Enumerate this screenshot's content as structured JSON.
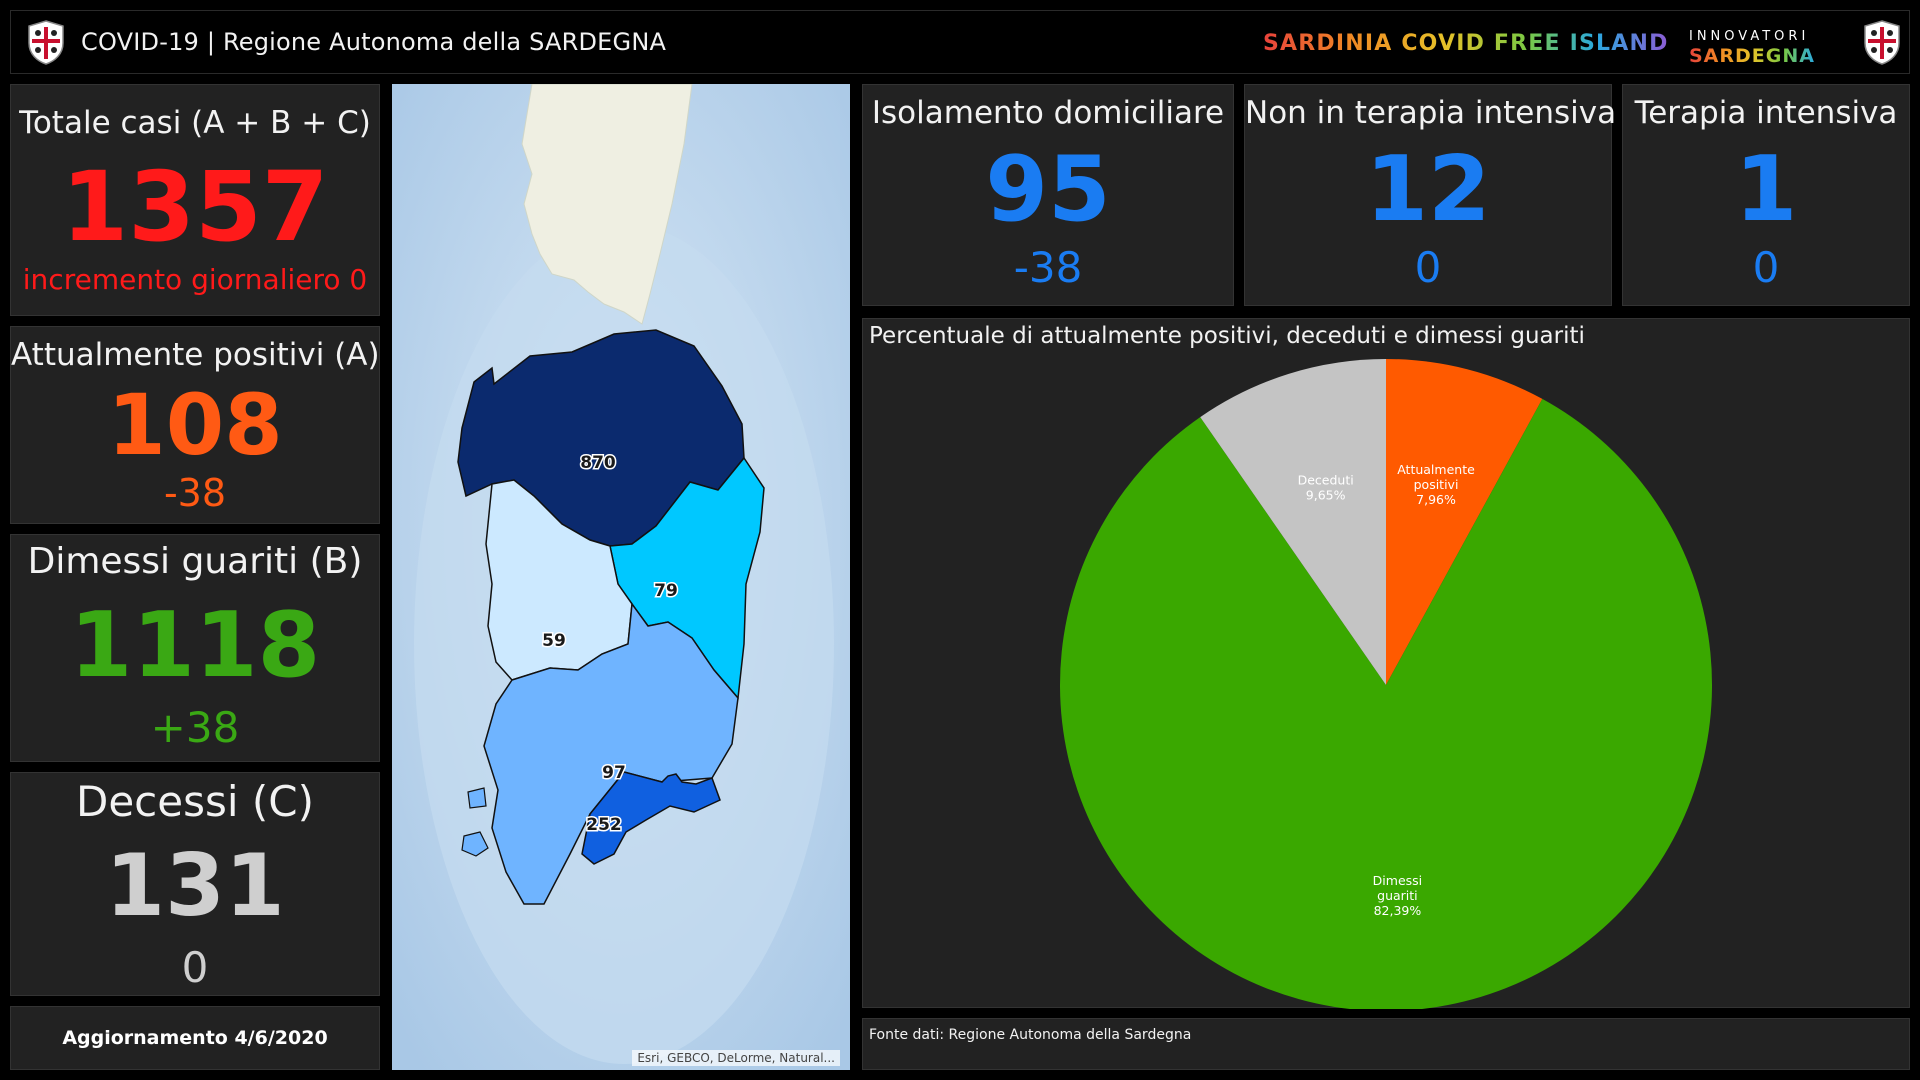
{
  "header": {
    "title": "COVID-19 | Regione Autonoma della SARDEGNA",
    "campaign": "SARDINIA COVID FREE ISLAND",
    "partner_top": "INNOVATORI",
    "partner_bottom": "SARDEGNA"
  },
  "kpis": {
    "totale": {
      "label": "Totale casi (A + B + C)",
      "value": "1357",
      "sub": "incremento giornaliero 0",
      "color": "#ff1a1a"
    },
    "positivi": {
      "label": "Attualmente positivi (A)",
      "value": "108",
      "sub": "-38",
      "color": "#ff5a14"
    },
    "guariti": {
      "label": "Dimessi guariti (B)",
      "value": "1118",
      "sub": "+38",
      "color": "#3aa814"
    },
    "decessi": {
      "label": "Decessi (C)",
      "value": "131",
      "sub": "0",
      "color": "#cfcfcf"
    }
  },
  "update": {
    "label": "Aggiornamento 4/6/2020"
  },
  "stats": {
    "isolamento": {
      "label": "Isolamento domiciliare",
      "value": "95",
      "sub": "-38"
    },
    "non_intensiva": {
      "label": "Non in terapia intensiva",
      "value": "12",
      "sub": "0"
    },
    "intensiva": {
      "label": "Terapia intensiva",
      "value": "1",
      "sub": "0"
    }
  },
  "map": {
    "regions": [
      {
        "id": "nord",
        "value": "870",
        "color": "#0b2a6e"
      },
      {
        "id": "est",
        "value": "79",
        "color": "#00c8ff"
      },
      {
        "id": "ovest",
        "value": "59",
        "color": "#cce9ff"
      },
      {
        "id": "centro-sud",
        "value": "97",
        "color": "#6fb4ff"
      },
      {
        "id": "sud",
        "value": "252",
        "color": "#1060e0"
      }
    ],
    "attribution": "Esri, GEBCO, DeLorme, Natural..."
  },
  "chart_data": {
    "type": "pie",
    "title": "Percentuale di attualmente positivi, deceduti e dimessi guariti",
    "slices": [
      {
        "name": "Attualmente positivi",
        "value": 7.96,
        "display": "7,96%",
        "color": "#ff5a00"
      },
      {
        "name": "Dimessi guariti",
        "value": 82.39,
        "display": "82,39%",
        "color": "#3aa800"
      },
      {
        "name": "Deceduti",
        "value": 9.65,
        "display": "9,65%",
        "color": "#c4c4c4"
      }
    ]
  },
  "source": {
    "label": "Fonte dati: Regione Autonoma della Sardegna"
  }
}
